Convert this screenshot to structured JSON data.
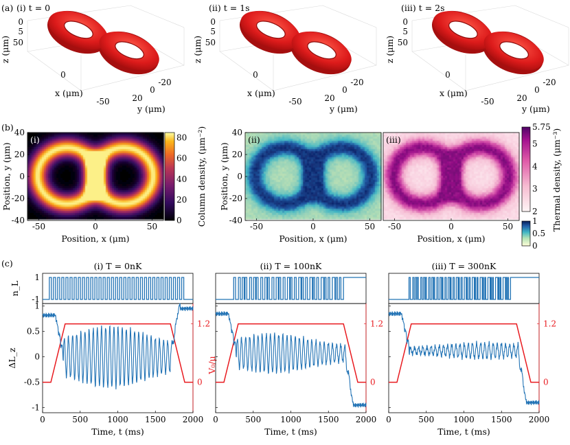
{
  "row_a": {
    "panel_label": "(a)",
    "panels": [
      {
        "title": "(i) t = 0",
        "neck": 1.0
      },
      {
        "title": "(ii) t = 1s",
        "neck": 0.55
      },
      {
        "title": "(iii) t = 2s",
        "neck": 0.72
      }
    ],
    "z_label": "z (μm)",
    "x_label": "x (μm)",
    "y_label": "y (μm)",
    "z_ticks": [
      "0",
      "5",
      "50"
    ],
    "x_ticks": [
      "0",
      "-50"
    ],
    "y_ticks": [
      "-20",
      "0",
      "20"
    ],
    "torus_color": "#dd1b1b"
  },
  "row_b": {
    "panel_label": "(b)",
    "panels": [
      {
        "tag": "(i)",
        "type": "column",
        "colormap": "inferno"
      },
      {
        "tag": "(ii)",
        "type": "condensate",
        "colormap": "ylgnbu"
      },
      {
        "tag": "(iii)",
        "type": "thermal",
        "colormap": "rdpu"
      }
    ],
    "xlabel": "Position, x (μm)",
    "ylabel": "Position, y (μm)",
    "x_ticks": [
      "-50",
      "0",
      "50"
    ],
    "y_ticks": [
      "40",
      "20",
      "0",
      "-20",
      "-40"
    ],
    "colorbar1": {
      "label": "Column density, (μm⁻²)",
      "ticks": [
        "80",
        "60",
        "40",
        "20",
        "0"
      ]
    },
    "colorbar2": {
      "label": "Thermal density, (μm⁻³)",
      "ticks": [
        "5.75",
        "5",
        "4",
        "3",
        "2"
      ]
    },
    "colorbar3": {
      "ticks": [
        "1",
        "0.5",
        "0"
      ]
    }
  },
  "chart_data": {
    "type": "line",
    "panel_label": "(c)",
    "xlabel": "Time, t (ms)",
    "ylabel_left": "ΔL_z",
    "ylabel_right": "V₀/μ",
    "ylabel_top": "n_L",
    "x_ticks": [
      "0",
      "500",
      "1000",
      "1500",
      "2000"
    ],
    "y_ticks": [
      "1",
      "0.5",
      "0",
      "-0.5",
      "-1"
    ],
    "right_ticks": [
      "1.2",
      "0"
    ],
    "xlim": [
      0,
      2000
    ],
    "ylim": [
      -1.1,
      1.05
    ],
    "nl_ylim": [
      -1,
      1
    ],
    "v0_ylim": [
      0,
      1.2
    ],
    "barrier_v0_mu": {
      "t": [
        0,
        110,
        300,
        1700,
        1890,
        2000
      ],
      "v": [
        0,
        0,
        1.2,
        1.2,
        0,
        0
      ]
    },
    "panels": [
      {
        "title": "(i) T = 0nK",
        "nl_start": 90,
        "nl_end": 1880,
        "nl_period": 55,
        "jitter": 0.0,
        "lz_pre": 0.82,
        "lz_post": 0.95,
        "osc_center": 0.0,
        "osc_amp_max": 0.6,
        "osc_peak_t": 900,
        "osc_period": 55
      },
      {
        "title": "(ii) T = 100nK",
        "nl_start": 240,
        "nl_end": 1700,
        "nl_period": 50,
        "jitter": 0.3,
        "lz_pre": 0.85,
        "lz_post": -0.95,
        "osc_center": 0.07,
        "osc_amp_max": 0.38,
        "osc_peak_t": 750,
        "osc_period": 55
      },
      {
        "title": "(iii) T = 300nK",
        "nl_start": 270,
        "nl_end": 1620,
        "nl_period": 34,
        "jitter": 0.55,
        "lz_pre": 0.85,
        "lz_post": -0.9,
        "osc_center": 0.12,
        "osc_amp_max": 0.15,
        "osc_peak_t": 1250,
        "osc_period": 55
      }
    ],
    "line_color": "#2273b5",
    "barrier_color": "#e8191e"
  }
}
